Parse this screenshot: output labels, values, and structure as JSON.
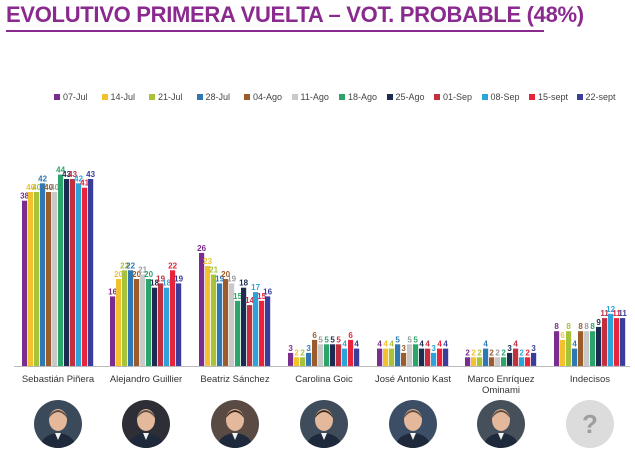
{
  "title": "EVOLUTIVO PRIMERA VUELTA – VOT. PROBABLE (48%)",
  "chart_data": {
    "type": "bar",
    "title": "EVOLUTIVO PRIMERA VUELTA – VOT. PROBABLE (48%)",
    "xlabel": "",
    "ylabel": "",
    "ylim": [
      0,
      48
    ],
    "grid": false,
    "legend_position": "top",
    "categories": [
      "Sebastián Piñera",
      "Alejandro Guillier",
      "Beatriz Sánchez",
      "Carolina Goic",
      "José Antonio Kast",
      "Marco Enríquez\nOminami",
      "Indecisos"
    ],
    "series": [
      {
        "name": "07-Jul",
        "color": "#7b2d8e",
        "values": [
          38,
          16,
          26,
          3,
          4,
          2,
          8
        ]
      },
      {
        "name": "14-Jul",
        "color": "#f2c12e",
        "values": [
          40,
          20,
          23,
          2,
          4,
          2,
          6
        ]
      },
      {
        "name": "21-Jul",
        "color": "#a8c23a",
        "values": [
          40,
          22,
          21,
          2,
          4,
          2,
          8
        ]
      },
      {
        "name": "28-Jul",
        "color": "#2f78b4",
        "values": [
          42,
          22,
          19,
          3,
          5,
          4,
          4
        ]
      },
      {
        "name": "04-Ago",
        "color": "#9c5b2a",
        "values": [
          40,
          20,
          20,
          6,
          3,
          2,
          8
        ]
      },
      {
        "name": "11-Ago",
        "color": "#c9c9c9",
        "values": [
          40,
          21,
          19,
          5,
          5,
          2,
          8
        ]
      },
      {
        "name": "18-Ago",
        "color": "#2ba56a",
        "values": [
          44,
          20,
          15,
          5,
          5,
          2,
          8
        ]
      },
      {
        "name": "25-Ago",
        "color": "#1c2b4f",
        "values": [
          43,
          18,
          18,
          5,
          4,
          3,
          9
        ]
      },
      {
        "name": "01-Sep",
        "color": "#c2303f",
        "values": [
          43,
          19,
          14,
          5,
          4,
          4,
          11
        ]
      },
      {
        "name": "08-Sep",
        "color": "#2da3dc",
        "values": [
          42,
          18,
          17,
          4,
          3,
          2,
          12
        ]
      },
      {
        "name": "15-sept",
        "color": "#e8233a",
        "values": [
          41,
          22,
          15,
          6,
          4,
          2,
          11
        ]
      },
      {
        "name": "22-sept",
        "color": "#3a3d99",
        "values": [
          43,
          19,
          16,
          4,
          4,
          3,
          11
        ]
      }
    ]
  },
  "avatars": [
    {
      "icon": "person-photo-icon"
    },
    {
      "icon": "person-photo-icon"
    },
    {
      "icon": "person-photo-icon"
    },
    {
      "icon": "person-photo-icon"
    },
    {
      "icon": "person-photo-icon"
    },
    {
      "icon": "person-photo-icon"
    },
    {
      "icon": "question-mark-icon",
      "text": "?"
    }
  ]
}
